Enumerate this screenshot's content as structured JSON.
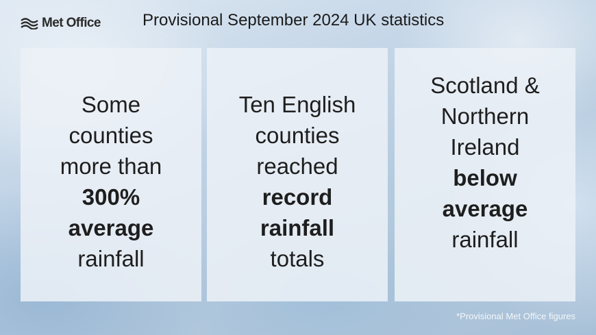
{
  "logo": {
    "text": "Met Office",
    "icon": "met-office-wave-icon"
  },
  "title": "Provisional September 2024 UK statistics",
  "cards": [
    {
      "line1": "Some",
      "line2": "counties",
      "line3": "more than",
      "bold1": "300%",
      "bold2": "average",
      "line4": "rainfall"
    },
    {
      "line1": "Ten English",
      "line2": "counties",
      "line3": "reached",
      "bold1": "record",
      "bold2": "rainfall",
      "line4": "totals"
    },
    {
      "line1": "Scotland &",
      "line2": "Northern",
      "line3": "Ireland",
      "bold1": "below",
      "bold2": "average",
      "line4": "rainfall"
    }
  ],
  "footnote": "*Provisional Met Office figures",
  "colors": {
    "card_background": "#ecf1f7",
    "text": "#1e1e1e",
    "footnote": "#f4f7fa"
  }
}
